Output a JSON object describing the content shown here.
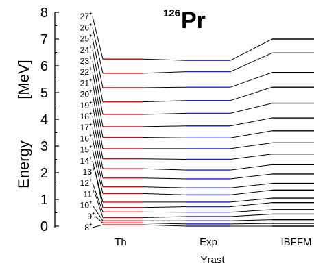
{
  "chart_data": {
    "type": "level-scheme",
    "title_mass": "126",
    "title_element": "Pr",
    "ylabel_word": "Energy",
    "ylabel_unit": "[MeV]",
    "xlabel": "Yrast",
    "ylim": [
      0,
      8
    ],
    "yticks": [
      "0",
      "1",
      "2",
      "3",
      "4",
      "5",
      "6",
      "7",
      "8"
    ],
    "columns": [
      "Th",
      "Exp",
      "IBFFM"
    ],
    "colors": {
      "Th": "#e8000b",
      "Exp": "#1f1fd6",
      "IBFFM": "#000000",
      "axis": "#000000"
    },
    "levels": [
      {
        "spin": "8",
        "th": 0.05,
        "exp": 0.0,
        "ibffm": 0.0
      },
      {
        "spin": "9",
        "th": 0.12,
        "exp": 0.08,
        "ibffm": 0.1
      },
      {
        "spin": "10",
        "th": 0.2,
        "exp": 0.2,
        "ibffm": 0.24
      },
      {
        "spin": "11",
        "th": 0.32,
        "exp": 0.36,
        "ibffm": 0.45
      },
      {
        "spin": "12",
        "th": 0.53,
        "exp": 0.52,
        "ibffm": 0.62
      },
      {
        "spin": "13",
        "th": 0.7,
        "exp": 0.73,
        "ibffm": 0.88
      },
      {
        "spin": "14",
        "th": 0.9,
        "exp": 0.9,
        "ibffm": 1.05
      },
      {
        "spin": "15",
        "th": 1.22,
        "exp": 1.17,
        "ibffm": 1.35
      },
      {
        "spin": "16",
        "th": 1.47,
        "exp": 1.43,
        "ibffm": 1.6
      },
      {
        "spin": "17",
        "th": 1.8,
        "exp": 1.77,
        "ibffm": 1.95
      },
      {
        "spin": "18",
        "th": 2.15,
        "exp": 2.1,
        "ibffm": 2.3
      },
      {
        "spin": "19",
        "th": 2.52,
        "exp": 2.5,
        "ibffm": 2.7
      },
      {
        "spin": "20",
        "th": 2.9,
        "exp": 2.9,
        "ibffm": 3.12
      },
      {
        "spin": "21",
        "th": 3.32,
        "exp": 3.3,
        "ibffm": 3.57
      },
      {
        "spin": "22",
        "th": 3.72,
        "exp": 3.75,
        "ibffm": 4.05
      },
      {
        "spin": "23",
        "th": 4.18,
        "exp": 4.22,
        "ibffm": 4.6
      },
      {
        "spin": "24",
        "th": 4.65,
        "exp": 4.7,
        "ibffm": 5.2
      },
      {
        "spin": "25",
        "th": 5.18,
        "exp": 5.2,
        "ibffm": 5.75
      },
      {
        "spin": "26",
        "th": 5.72,
        "exp": 5.78,
        "ibffm": 6.48
      },
      {
        "spin": "27",
        "th": 6.25,
        "exp": 6.2,
        "ibffm": 7.0
      }
    ]
  }
}
